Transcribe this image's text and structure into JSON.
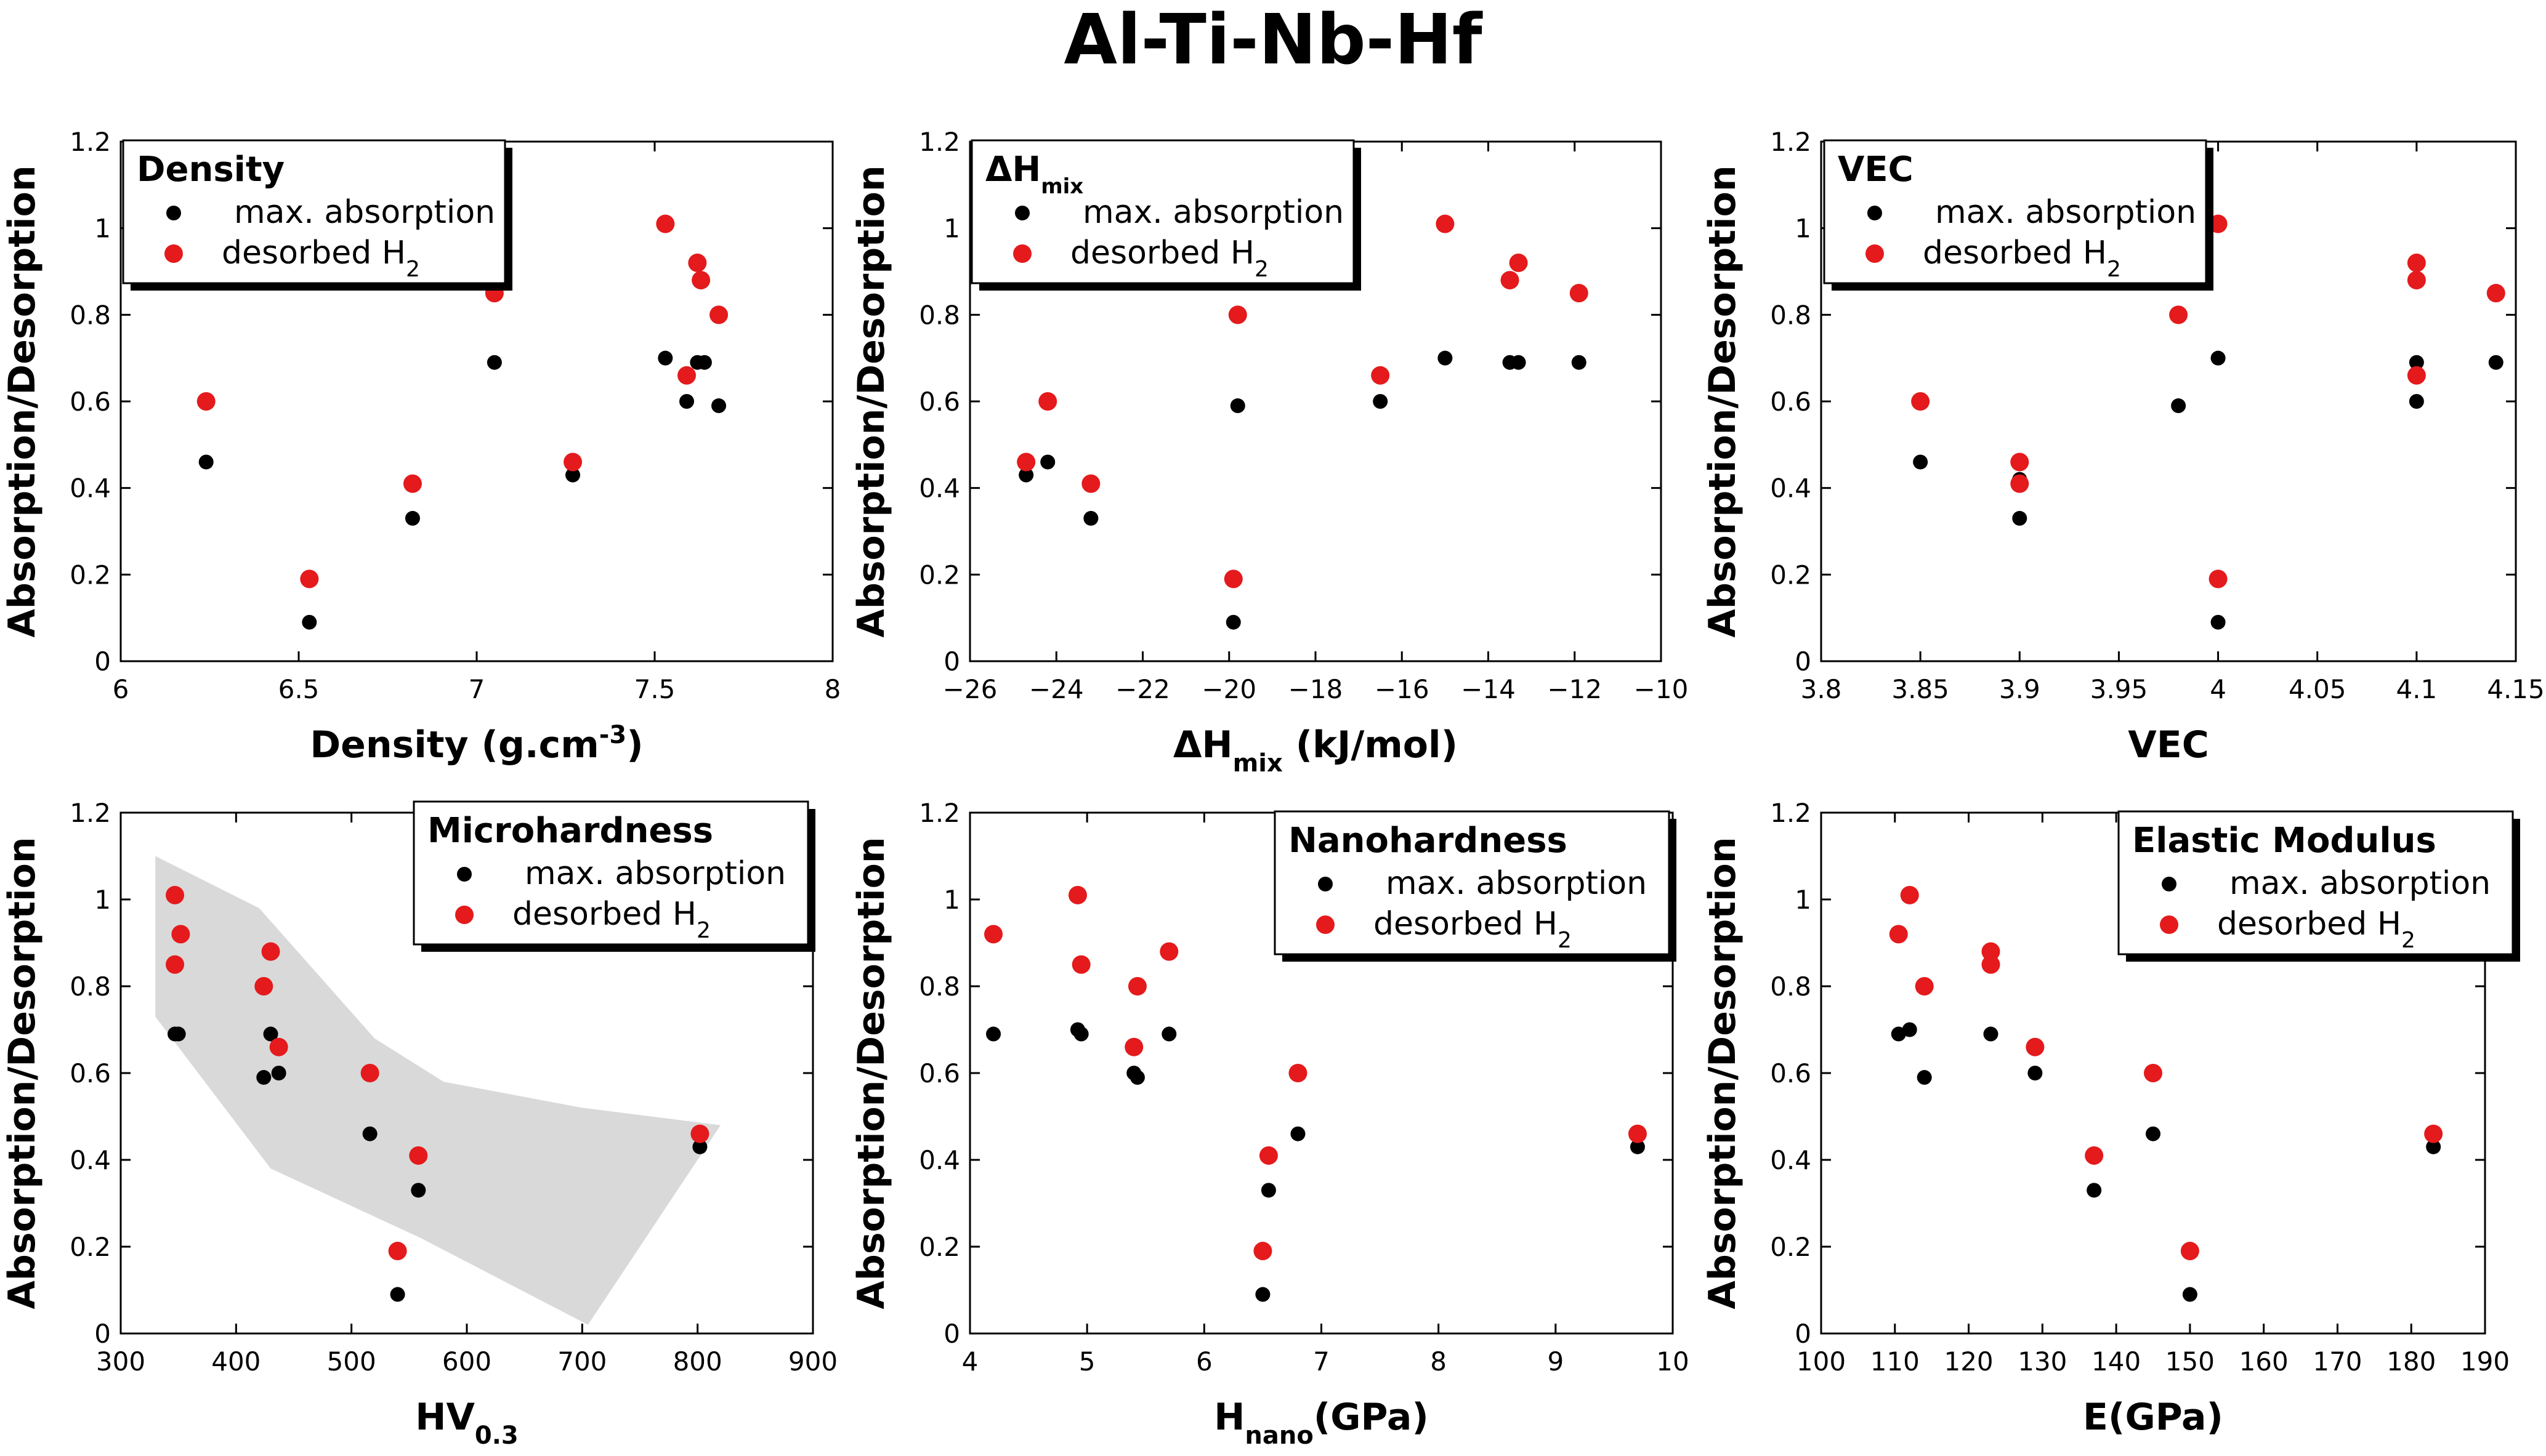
{
  "page_title": "Al-Ti-Nb-Hf",
  "legend": {
    "abs_label": "max. absorption",
    "des_label": "desorbed H",
    "des_sub": "2"
  },
  "colors": {
    "abs": "#000000",
    "des": "#e41a1c",
    "shade": "#d9d9d9"
  },
  "chart_data": [
    {
      "type": "scatter",
      "legend_title": "Density",
      "xlabel": "Density (g.cm",
      "xlabel_sup": "-3",
      "xlabel_tail": ")",
      "ylabel": "Absorption/Desorption",
      "xlim": [
        6,
        8
      ],
      "ylim": [
        0,
        1.2
      ],
      "xticks": [
        6,
        6.5,
        7,
        7.5,
        8
      ],
      "xtick_labels": [
        "6",
        "6.5",
        "7",
        "7.5",
        "8"
      ],
      "yticks": [
        0,
        0.2,
        0.4,
        0.6,
        0.8,
        1,
        1.2
      ],
      "ytick_labels": [
        "0",
        "0.2",
        "0.4",
        "0.6",
        "0.8",
        "1",
        "1.2"
      ],
      "legend_placement": "top-left",
      "series": [
        {
          "name": "max. absorption",
          "x": [
            6.24,
            6.53,
            6.82,
            7.05,
            7.27,
            7.53,
            7.59,
            7.62,
            7.64,
            7.68
          ],
          "y": [
            0.46,
            0.09,
            0.33,
            0.69,
            0.43,
            0.7,
            0.6,
            0.69,
            0.69,
            0.59
          ]
        },
        {
          "name": "desorbed H2",
          "x": [
            6.24,
            6.53,
            6.82,
            7.05,
            7.27,
            7.53,
            7.59,
            7.62,
            7.63,
            7.68
          ],
          "y": [
            0.6,
            0.19,
            0.41,
            0.85,
            0.46,
            1.01,
            0.66,
            0.92,
            0.88,
            0.8
          ]
        }
      ]
    },
    {
      "type": "scatter",
      "legend_title": "ΔH",
      "legend_title_sub": "mix",
      "xlabel": "ΔH",
      "xlabel_sub": "mix",
      "xlabel_tail": " (kJ/mol)",
      "ylabel": "Absorption/Desorption",
      "xlim": [
        -26,
        -10
      ],
      "ylim": [
        0,
        1.2
      ],
      "xticks": [
        -26,
        -24,
        -22,
        -20,
        -18,
        -16,
        -14,
        -12,
        -10
      ],
      "xtick_labels": [
        "−26",
        "−24",
        "−22",
        "−20",
        "−18",
        "−16",
        "−14",
        "−12",
        "−10"
      ],
      "yticks": [
        0,
        0.2,
        0.4,
        0.6,
        0.8,
        1,
        1.2
      ],
      "ytick_labels": [
        "0",
        "0.2",
        "0.4",
        "0.6",
        "0.8",
        "1",
        "1.2"
      ],
      "legend_placement": "top-left",
      "series": [
        {
          "name": "max. absorption",
          "x": [
            -24.7,
            -24.2,
            -23.2,
            -19.9,
            -19.8,
            -16.5,
            -15.0,
            -13.5,
            -13.3,
            -11.9
          ],
          "y": [
            0.43,
            0.46,
            0.33,
            0.09,
            0.59,
            0.6,
            0.7,
            0.69,
            0.69,
            0.69
          ]
        },
        {
          "name": "desorbed H2",
          "x": [
            -24.7,
            -24.2,
            -23.2,
            -19.9,
            -19.8,
            -16.5,
            -15.0,
            -13.5,
            -13.3,
            -11.9
          ],
          "y": [
            0.46,
            0.6,
            0.41,
            0.19,
            0.8,
            0.66,
            1.01,
            0.88,
            0.92,
            0.85
          ]
        }
      ]
    },
    {
      "type": "scatter",
      "legend_title": "VEC",
      "xlabel": "VEC",
      "ylabel": "Absorption/Desorption",
      "xlim": [
        3.8,
        4.15
      ],
      "ylim": [
        0,
        1.2
      ],
      "xticks": [
        3.8,
        3.85,
        3.9,
        3.95,
        4,
        4.05,
        4.1,
        4.15
      ],
      "xtick_labels": [
        "3.8",
        "3.85",
        "3.9",
        "3.95",
        "4",
        "4.05",
        "4.1",
        "4.15"
      ],
      "yticks": [
        0,
        0.2,
        0.4,
        0.6,
        0.8,
        1,
        1.2
      ],
      "ytick_labels": [
        "0",
        "0.2",
        "0.4",
        "0.6",
        "0.8",
        "1",
        "1.2"
      ],
      "legend_placement": "top-left",
      "series": [
        {
          "name": "max. absorption",
          "x": [
            3.85,
            3.9,
            3.9,
            3.98,
            4.0,
            4.0,
            4.1,
            4.1,
            4.14
          ],
          "y": [
            0.46,
            0.42,
            0.33,
            0.59,
            0.7,
            0.09,
            0.69,
            0.6,
            0.69
          ]
        },
        {
          "name": "desorbed H2",
          "x": [
            3.85,
            3.9,
            3.9,
            3.98,
            4.0,
            4.0,
            4.1,
            4.1,
            4.1,
            4.14
          ],
          "y": [
            0.6,
            0.46,
            0.41,
            0.8,
            1.01,
            0.19,
            0.92,
            0.88,
            0.66,
            0.85
          ]
        }
      ]
    },
    {
      "type": "scatter",
      "legend_title": "Microhardness",
      "xlabel": "HV",
      "xlabel_sub": "0.3",
      "xlabel_tail": "",
      "ylabel": "Absorption/Desorption",
      "xlim": [
        300,
        900
      ],
      "ylim": [
        0,
        1.2
      ],
      "xticks": [
        300,
        400,
        500,
        600,
        700,
        800,
        900
      ],
      "xtick_labels": [
        "300",
        "400",
        "500",
        "600",
        "700",
        "800",
        "900"
      ],
      "yticks": [
        0,
        0.2,
        0.4,
        0.6,
        0.8,
        1,
        1.2
      ],
      "ytick_labels": [
        "0",
        "0.2",
        "0.4",
        "0.6",
        "0.8",
        "1",
        "1.2"
      ],
      "legend_placement": "top-right",
      "shaded_region": [
        [
          330,
          1.1
        ],
        [
          420,
          0.98
        ],
        [
          520,
          0.68
        ],
        [
          580,
          0.58
        ],
        [
          700,
          0.52
        ],
        [
          820,
          0.48
        ],
        [
          705,
          0.02
        ],
        [
          560,
          0.22
        ],
        [
          430,
          0.38
        ],
        [
          330,
          0.73
        ]
      ],
      "series": [
        {
          "name": "max. absorption",
          "x": [
            347,
            350,
            424,
            430,
            437,
            516,
            540,
            558,
            802
          ],
          "y": [
            0.69,
            0.69,
            0.59,
            0.69,
            0.6,
            0.46,
            0.09,
            0.33,
            0.43
          ]
        },
        {
          "name": "desorbed H2",
          "x": [
            347,
            347,
            352,
            424,
            430,
            437,
            516,
            540,
            558,
            802
          ],
          "y": [
            1.01,
            0.85,
            0.92,
            0.8,
            0.88,
            0.66,
            0.6,
            0.19,
            0.41,
            0.46
          ]
        }
      ]
    },
    {
      "type": "scatter",
      "legend_title": "Nanohardness",
      "xlabel": "H",
      "xlabel_sub": "nano",
      "xlabel_tail": "(GPa)",
      "ylabel": "Absorption/Desorption",
      "xlim": [
        4,
        10
      ],
      "ylim": [
        0,
        1.2
      ],
      "xticks": [
        4,
        5,
        6,
        7,
        8,
        9,
        10
      ],
      "xtick_labels": [
        "4",
        "5",
        "6",
        "7",
        "8",
        "9",
        "10"
      ],
      "yticks": [
        0,
        0.2,
        0.4,
        0.6,
        0.8,
        1,
        1.2
      ],
      "ytick_labels": [
        "0",
        "0.2",
        "0.4",
        "0.6",
        "0.8",
        "1",
        "1.2"
      ],
      "legend_placement": "top-right",
      "series": [
        {
          "name": "max. absorption",
          "x": [
            4.2,
            4.92,
            4.95,
            5.4,
            5.43,
            5.7,
            6.5,
            6.55,
            6.8,
            9.7
          ],
          "y": [
            0.69,
            0.7,
            0.69,
            0.6,
            0.59,
            0.69,
            0.09,
            0.33,
            0.46,
            0.43
          ]
        },
        {
          "name": "desorbed H2",
          "x": [
            4.2,
            4.92,
            4.95,
            5.4,
            5.43,
            5.7,
            6.5,
            6.55,
            6.8,
            9.7
          ],
          "y": [
            0.92,
            1.01,
            0.85,
            0.66,
            0.8,
            0.88,
            0.19,
            0.41,
            0.6,
            0.46
          ]
        }
      ]
    },
    {
      "type": "scatter",
      "legend_title": "Elastic Modulus",
      "xlabel": "E(GPa)",
      "ylabel": "Absorption/Desorption",
      "xlim": [
        100,
        190
      ],
      "ylim": [
        0,
        1.2
      ],
      "xticks": [
        100,
        110,
        120,
        130,
        140,
        150,
        160,
        170,
        180,
        190
      ],
      "xtick_labels": [
        "100",
        "110",
        "120",
        "130",
        "140",
        "150",
        "160",
        "170",
        "180",
        "190"
      ],
      "yticks": [
        0,
        0.2,
        0.4,
        0.6,
        0.8,
        1,
        1.2
      ],
      "ytick_labels": [
        "0",
        "0.2",
        "0.4",
        "0.6",
        "0.8",
        "1",
        "1.2"
      ],
      "legend_placement": "top-right",
      "series": [
        {
          "name": "max. absorption",
          "x": [
            110.5,
            112,
            114,
            123,
            129,
            137,
            145,
            150,
            183
          ],
          "y": [
            0.69,
            0.7,
            0.59,
            0.69,
            0.6,
            0.33,
            0.46,
            0.09,
            0.43
          ]
        },
        {
          "name": "desorbed H2",
          "x": [
            110.5,
            112,
            114,
            123,
            123,
            129,
            137,
            145,
            150,
            183
          ],
          "y": [
            0.92,
            1.01,
            0.8,
            0.88,
            0.85,
            0.66,
            0.41,
            0.6,
            0.19,
            0.46
          ]
        }
      ]
    }
  ]
}
